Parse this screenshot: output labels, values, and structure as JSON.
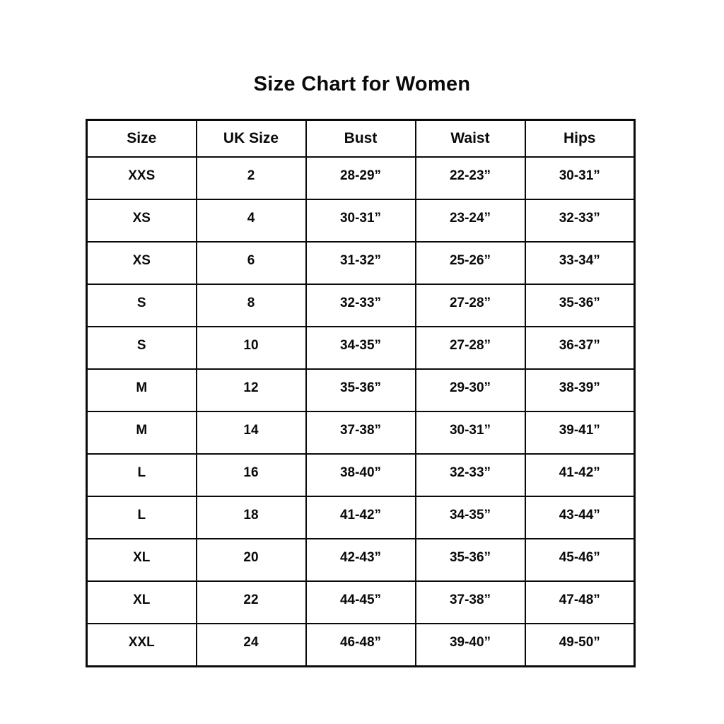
{
  "title": "Size Chart for Women",
  "table": {
    "headers": [
      "Size",
      "UK Size",
      "Bust",
      "Waist",
      "Hips"
    ],
    "rows": [
      [
        "XXS",
        "2",
        "28-29”",
        "22-23”",
        "30-31”"
      ],
      [
        "XS",
        "4",
        "30-31”",
        "23-24”",
        "32-33”"
      ],
      [
        "XS",
        "6",
        "31-32”",
        "25-26”",
        "33-34”"
      ],
      [
        "S",
        "8",
        "32-33”",
        "27-28”",
        "35-36”"
      ],
      [
        "S",
        "10",
        "34-35”",
        "27-28”",
        "36-37”"
      ],
      [
        "M",
        "12",
        "35-36”",
        "29-30”",
        "38-39”"
      ],
      [
        "M",
        "14",
        "37-38”",
        "30-31”",
        "39-41”"
      ],
      [
        "L",
        "16",
        "38-40”",
        "32-33”",
        "41-42”"
      ],
      [
        "L",
        "18",
        "41-42”",
        "34-35”",
        "43-44”"
      ],
      [
        "XL",
        "20",
        "42-43”",
        "35-36”",
        "45-46”"
      ],
      [
        "XL",
        "22",
        "44-45”",
        "37-38”",
        "47-48”"
      ],
      [
        "XXL",
        "24",
        "46-48”",
        "39-40”",
        "49-50”"
      ]
    ]
  },
  "colors": {
    "text": "#0a0a0a",
    "border": "#0a0a0a",
    "background": "#ffffff"
  }
}
